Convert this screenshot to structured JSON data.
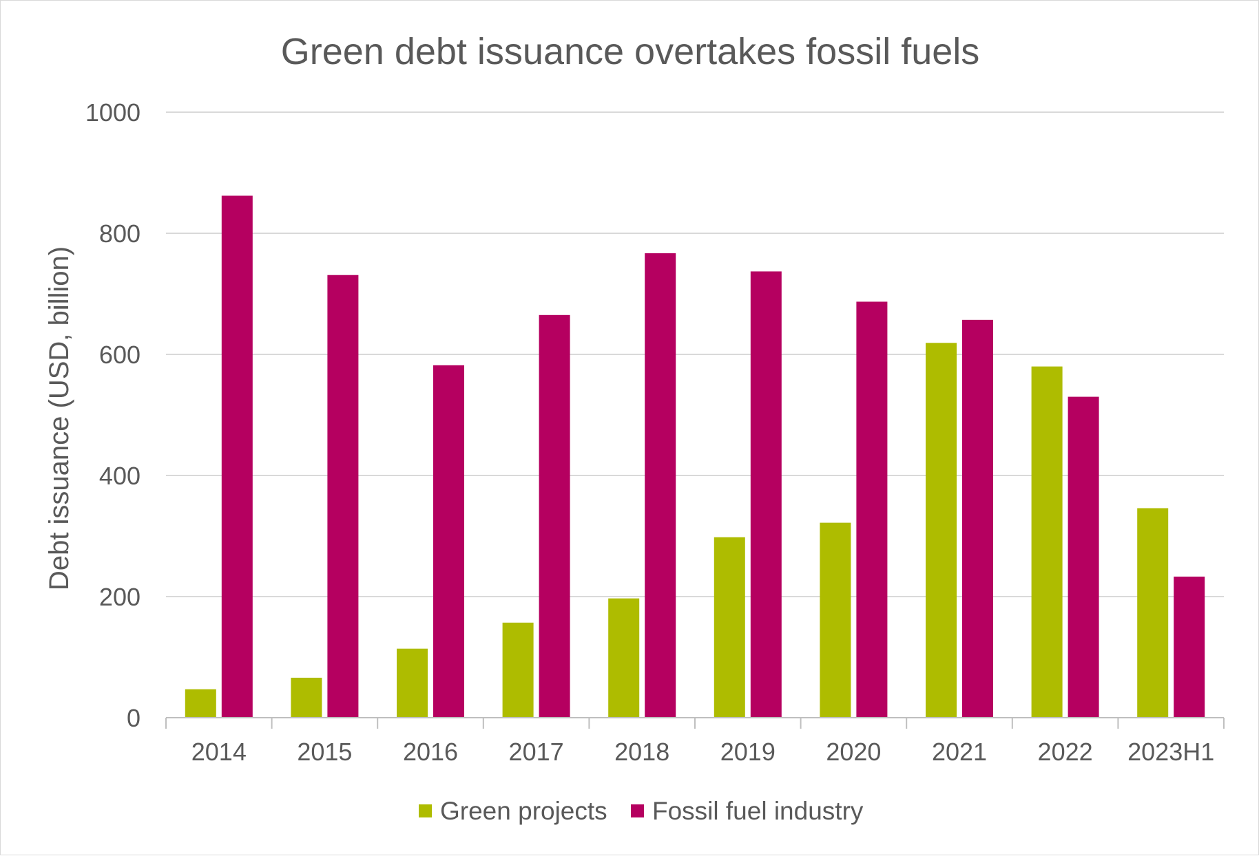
{
  "chart_data": {
    "type": "bar",
    "title": "Green debt issuance overtakes fossil fuels",
    "xlabel": "",
    "ylabel": "Debt issuance (USD, billion)",
    "ylim": [
      0,
      1000
    ],
    "yticks": [
      "0",
      "200",
      "400",
      "600",
      "800",
      "1000"
    ],
    "grid": true,
    "legend_position": "bottom",
    "categories": [
      "2014",
      "2015",
      "2016",
      "2017",
      "2018",
      "2019",
      "2020",
      "2021",
      "2022",
      "2023H1"
    ],
    "series": [
      {
        "name": "Green projects",
        "color": "#aebc00",
        "values": [
          47,
          66,
          114,
          157,
          197,
          298,
          322,
          619,
          580,
          346
        ]
      },
      {
        "name": "Fossil fuel industry",
        "color": "#b50060",
        "values": [
          862,
          731,
          582,
          665,
          767,
          737,
          687,
          657,
          530,
          233
        ]
      }
    ]
  }
}
